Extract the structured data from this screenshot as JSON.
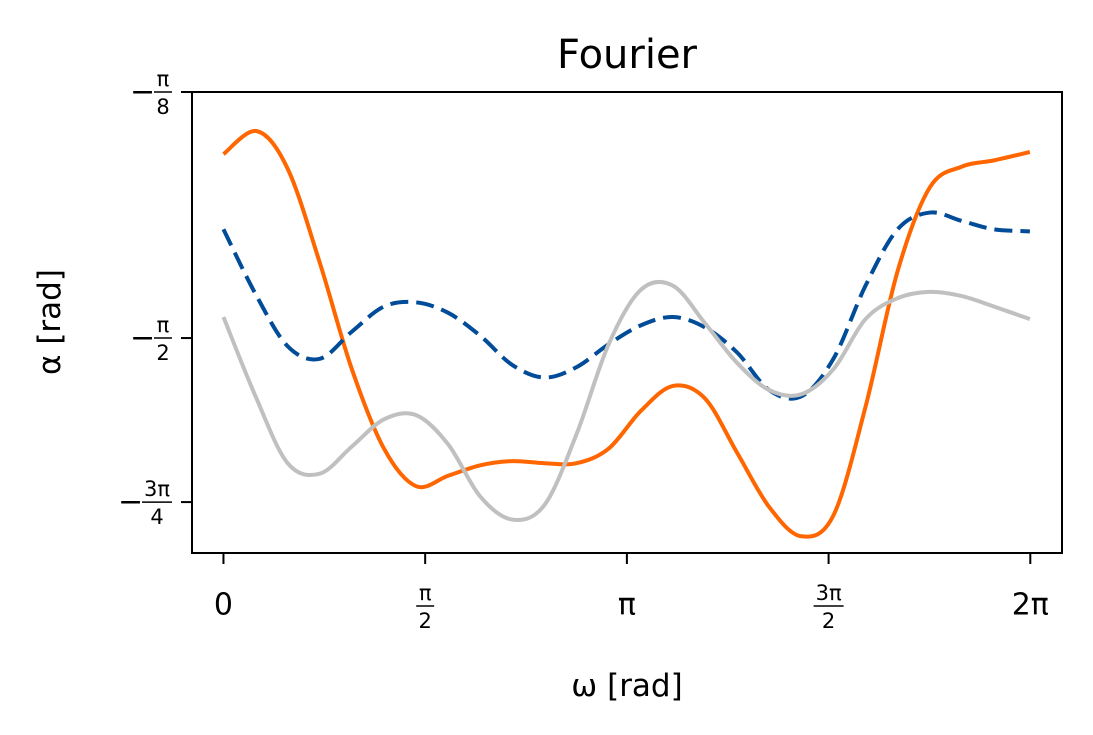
{
  "chart_data": {
    "type": "line",
    "title": "Fourier",
    "xlabel": "ω [rad]",
    "ylabel": "α [rad]",
    "xlim": [
      -0.245,
      6.53
    ],
    "ylim": [
      -2.6,
      -0.3927
    ],
    "grid": false,
    "legend": "none",
    "x_ticks": [
      {
        "value": 0,
        "label": "0"
      },
      {
        "value": 1.5708,
        "label": "π/2"
      },
      {
        "value": 3.1416,
        "label": "π"
      },
      {
        "value": 4.7124,
        "label": "3π/2"
      },
      {
        "value": 6.2832,
        "label": "2π"
      }
    ],
    "y_ticks": [
      {
        "value": -0.3927,
        "label": "−π/8"
      },
      {
        "value": -1.5708,
        "label": "−π/2"
      },
      {
        "value": -2.3562,
        "label": "−3π/4"
      }
    ],
    "series": [
      {
        "color": "#ff6600",
        "style": "solid",
        "x": [
          0.0,
          0.26,
          0.5,
          0.75,
          1.0,
          1.25,
          1.5,
          1.75,
          2.0,
          2.25,
          2.5,
          2.75,
          3.0,
          3.25,
          3.5,
          3.75,
          4.0,
          4.25,
          4.5,
          4.75,
          5.0,
          5.25,
          5.5,
          5.75,
          6.0,
          6.28
        ],
        "y": [
          -0.69,
          -0.58,
          -0.76,
          -1.21,
          -1.72,
          -2.1,
          -2.28,
          -2.23,
          -2.18,
          -2.16,
          -2.17,
          -2.17,
          -2.1,
          -1.92,
          -1.8,
          -1.86,
          -2.12,
          -2.38,
          -2.52,
          -2.42,
          -1.9,
          -1.25,
          -0.85,
          -0.75,
          -0.72,
          -0.68
        ]
      },
      {
        "color": "#004c99",
        "style": "dashed",
        "x": [
          0.0,
          0.25,
          0.5,
          0.75,
          1.0,
          1.25,
          1.5,
          1.75,
          2.0,
          2.25,
          2.5,
          2.75,
          3.0,
          3.25,
          3.5,
          3.75,
          4.0,
          4.25,
          4.5,
          4.75,
          5.0,
          5.25,
          5.5,
          5.75,
          6.0,
          6.28
        ],
        "y": [
          -1.05,
          -1.36,
          -1.61,
          -1.67,
          -1.54,
          -1.42,
          -1.4,
          -1.45,
          -1.56,
          -1.7,
          -1.76,
          -1.71,
          -1.6,
          -1.51,
          -1.47,
          -1.52,
          -1.64,
          -1.82,
          -1.85,
          -1.67,
          -1.32,
          -1.05,
          -0.97,
          -1.01,
          -1.05,
          -1.06
        ]
      },
      {
        "color": "#c0c0c0",
        "style": "solid",
        "x": [
          0.0,
          0.25,
          0.5,
          0.75,
          1.0,
          1.25,
          1.5,
          1.75,
          2.0,
          2.25,
          2.5,
          2.75,
          3.0,
          3.25,
          3.5,
          3.75,
          4.0,
          4.25,
          4.5,
          4.75,
          5.0,
          5.25,
          5.5,
          5.75,
          6.0,
          6.28
        ],
        "y": [
          -1.47,
          -1.85,
          -2.17,
          -2.22,
          -2.09,
          -1.96,
          -1.94,
          -2.08,
          -2.33,
          -2.44,
          -2.37,
          -2.03,
          -1.6,
          -1.34,
          -1.32,
          -1.5,
          -1.69,
          -1.82,
          -1.84,
          -1.72,
          -1.48,
          -1.38,
          -1.35,
          -1.37,
          -1.42,
          -1.48
        ]
      }
    ]
  }
}
